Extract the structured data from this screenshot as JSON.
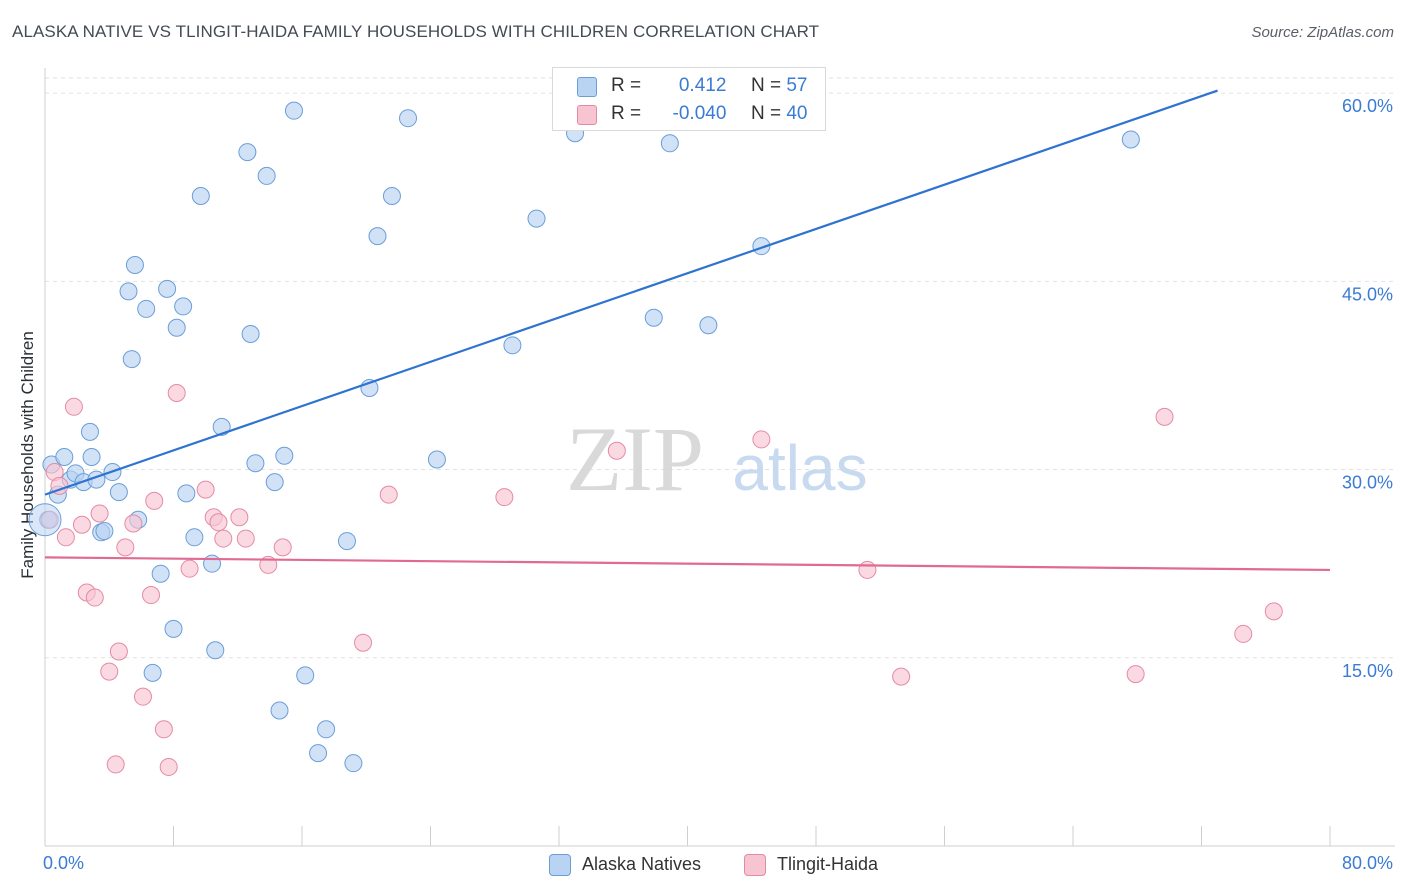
{
  "title": "ALASKA NATIVE VS TLINGIT-HAIDA FAMILY HOUSEHOLDS WITH CHILDREN CORRELATION CHART",
  "source": "Source: ZipAtlas.com",
  "watermark": {
    "zip": "ZIP",
    "atlas": "atlas"
  },
  "legend_top": {
    "row1": {
      "r_label": "R =",
      "r_value": "0.412",
      "n_label": "N =",
      "n_value": "57"
    },
    "row2": {
      "r_label": "R =",
      "r_value": "-0.040",
      "n_label": "N =",
      "n_value": "40"
    }
  },
  "chart_data": {
    "type": "scatter",
    "title": "ALASKA NATIVE VS TLINGIT-HAIDA FAMILY HOUSEHOLDS WITH CHILDREN CORRELATION CHART",
    "xlabel": "",
    "ylabel": "Family Households with Children",
    "xlim": [
      0,
      80
    ],
    "ylim": [
      0,
      62
    ],
    "x_tick_labels": [
      "0.0%",
      "80.0%"
    ],
    "y_tick_labels": [
      "15.0%",
      "30.0%",
      "45.0%",
      "60.0%"
    ],
    "y_ticks": [
      15,
      30,
      45,
      60
    ],
    "grid": true,
    "legend_position": "bottom-center",
    "colors": {
      "alaska_fill": "#b9d3f3",
      "alaska_stroke": "#6a9ed8",
      "alaska_line": "#2f73d1",
      "tlingit_fill": "#f7c4d2",
      "tlingit_stroke": "#e58aa5",
      "tlingit_line": "#e06a93",
      "tick_label": "#3a7bd5"
    },
    "series": [
      {
        "name": "Alaska Natives",
        "r": 0.412,
        "n": 57,
        "trend": {
          "x": [
            0,
            73
          ],
          "y": [
            28.0,
            60.2
          ]
        },
        "points": [
          [
            0.2,
            26
          ],
          [
            0.4,
            30.4
          ],
          [
            0.8,
            28
          ],
          [
            1.2,
            31
          ],
          [
            1.6,
            29.2
          ],
          [
            1.9,
            29.7
          ],
          [
            2.4,
            29
          ],
          [
            2.8,
            33
          ],
          [
            2.9,
            31
          ],
          [
            3.2,
            29.2
          ],
          [
            3.5,
            25
          ],
          [
            3.7,
            25.1
          ],
          [
            4.2,
            29.8
          ],
          [
            4.6,
            28.2
          ],
          [
            5.2,
            44.2
          ],
          [
            5.4,
            38.8
          ],
          [
            5.6,
            46.3
          ],
          [
            5.8,
            26
          ],
          [
            6.3,
            42.8
          ],
          [
            6.7,
            13.8
          ],
          [
            7.2,
            21.7
          ],
          [
            7.6,
            44.4
          ],
          [
            8.0,
            17.3
          ],
          [
            8.2,
            41.3
          ],
          [
            8.6,
            43
          ],
          [
            8.8,
            28.1
          ],
          [
            9.3,
            24.6
          ],
          [
            9.7,
            51.8
          ],
          [
            10.4,
            22.5
          ],
          [
            10.6,
            15.6
          ],
          [
            11.0,
            33.4
          ],
          [
            12.6,
            55.3
          ],
          [
            12.8,
            40.8
          ],
          [
            13.1,
            30.5
          ],
          [
            13.8,
            53.4
          ],
          [
            14.3,
            29
          ],
          [
            14.6,
            10.8
          ],
          [
            14.9,
            31.1
          ],
          [
            15.5,
            58.6
          ],
          [
            16.2,
            13.6
          ],
          [
            17.0,
            7.4
          ],
          [
            17.5,
            9.3
          ],
          [
            18.8,
            24.3
          ],
          [
            19.2,
            6.6
          ],
          [
            20.2,
            36.5
          ],
          [
            20.7,
            48.6
          ],
          [
            21.6,
            51.8
          ],
          [
            22.6,
            58
          ],
          [
            24.4,
            30.8
          ],
          [
            29.1,
            39.9
          ],
          [
            30.6,
            50
          ],
          [
            33.0,
            56.8
          ],
          [
            37.9,
            42.1
          ],
          [
            38.9,
            56
          ],
          [
            41.3,
            41.5
          ],
          [
            44.6,
            47.8
          ],
          [
            67.6,
            56.3
          ]
        ]
      },
      {
        "name": "Tlingit-Haida",
        "r": -0.04,
        "n": 40,
        "trend": {
          "x": [
            0,
            80
          ],
          "y": [
            23.0,
            22.0
          ]
        },
        "points": [
          [
            0.3,
            26
          ],
          [
            0.6,
            29.8
          ],
          [
            0.9,
            28.7
          ],
          [
            1.3,
            24.6
          ],
          [
            1.8,
            35
          ],
          [
            2.3,
            25.6
          ],
          [
            2.6,
            20.2
          ],
          [
            3.1,
            19.8
          ],
          [
            3.4,
            26.5
          ],
          [
            4.0,
            13.9
          ],
          [
            4.4,
            6.5
          ],
          [
            4.6,
            15.5
          ],
          [
            5.0,
            23.8
          ],
          [
            5.5,
            25.7
          ],
          [
            6.1,
            11.9
          ],
          [
            6.6,
            20
          ],
          [
            6.8,
            27.5
          ],
          [
            7.4,
            9.3
          ],
          [
            7.7,
            6.3
          ],
          [
            8.2,
            36.1
          ],
          [
            9.0,
            22.1
          ],
          [
            10.0,
            28.4
          ],
          [
            10.5,
            26.2
          ],
          [
            10.8,
            25.8
          ],
          [
            11.1,
            24.5
          ],
          [
            12.1,
            26.2
          ],
          [
            12.5,
            24.5
          ],
          [
            13.9,
            22.4
          ],
          [
            14.8,
            23.8
          ],
          [
            19.8,
            16.2
          ],
          [
            21.4,
            28
          ],
          [
            28.6,
            27.8
          ],
          [
            35.6,
            31.5
          ],
          [
            44.6,
            32.4
          ],
          [
            51.2,
            22
          ],
          [
            53.3,
            13.5
          ],
          [
            67.9,
            13.7
          ],
          [
            69.7,
            34.2
          ],
          [
            74.6,
            16.9
          ],
          [
            76.5,
            18.7
          ]
        ]
      }
    ]
  },
  "legend_bottom": {
    "series1": "Alaska Natives",
    "series2": "Tlingit-Haida"
  }
}
